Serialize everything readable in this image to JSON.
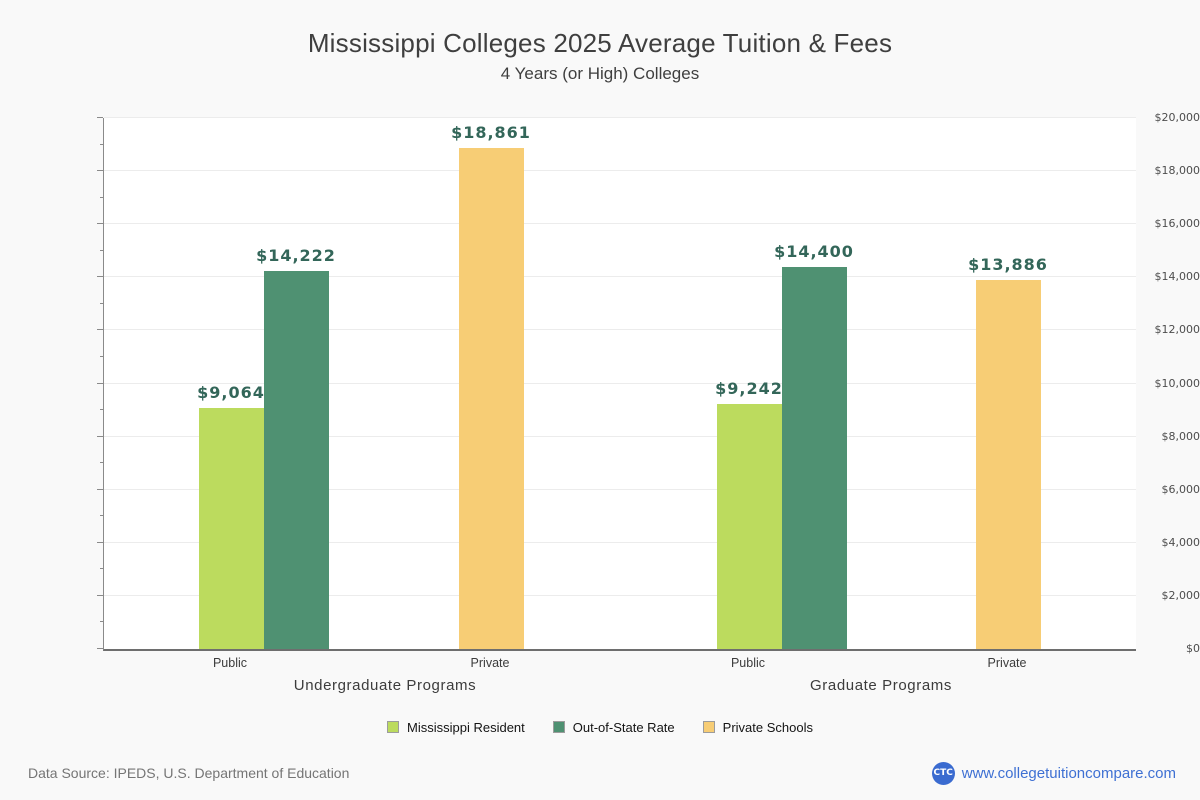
{
  "chart_data": {
    "type": "bar",
    "title": "Mississippi Colleges 2025 Average Tuition & Fees",
    "subtitle": "4 Years (or High)  Colleges",
    "xlabel": "",
    "ylabel": "",
    "ylim": [
      0,
      20000
    ],
    "ytick_interval": 2000,
    "minor_tick_interval": 1000,
    "ytick_labels": [
      "$0",
      "$2,000",
      "$4,000",
      "$6,000",
      "$8,000",
      "$10,000",
      "$12,000",
      "$14,000",
      "$16,000",
      "$18,000",
      "$20,000"
    ],
    "grid": true,
    "legend_position": "bottom-center",
    "series": [
      {
        "name": "Mississippi Resident",
        "color": "#bcdb5e"
      },
      {
        "name": "Out-of-State Rate",
        "color": "#4f9172"
      },
      {
        "name": "Private Schools",
        "color": "#f7cd75"
      }
    ],
    "groups": [
      {
        "label": "Undergraduate Programs",
        "categories": [
          {
            "label": "Public",
            "bars": [
              {
                "series": "Mississippi Resident",
                "value": 9064,
                "value_label": "$9,064"
              },
              {
                "series": "Out-of-State Rate",
                "value": 14222,
                "value_label": "$14,222"
              }
            ]
          },
          {
            "label": "Private",
            "bars": [
              {
                "series": "Private Schools",
                "value": 18861,
                "value_label": "$18,861"
              }
            ]
          }
        ]
      },
      {
        "label": "Graduate Programs",
        "categories": [
          {
            "label": "Public",
            "bars": [
              {
                "series": "Mississippi Resident",
                "value": 9242,
                "value_label": "$9,242"
              },
              {
                "series": "Out-of-State Rate",
                "value": 14400,
                "value_label": "$14,400"
              }
            ]
          },
          {
            "label": "Private",
            "bars": [
              {
                "series": "Private Schools",
                "value": 13886,
                "value_label": "$13,886"
              }
            ]
          }
        ]
      }
    ]
  },
  "colors": {
    "background": "#f9f9f9",
    "plot_background": "#ffffff",
    "gridline": "#ececec",
    "axis_line": "#8a8a8a",
    "value_label": "#336659",
    "tick_label": "#4d4d4d",
    "text": "#3c3c3c",
    "source_text": "#757575",
    "link": "#3e70d3",
    "logo_background": "#3a6bd0"
  },
  "footer": {
    "source": "Data Source: IPEDS, U.S. Department of Education",
    "logo_text": "CTC",
    "website": "www.collegetuitioncompare.com"
  }
}
